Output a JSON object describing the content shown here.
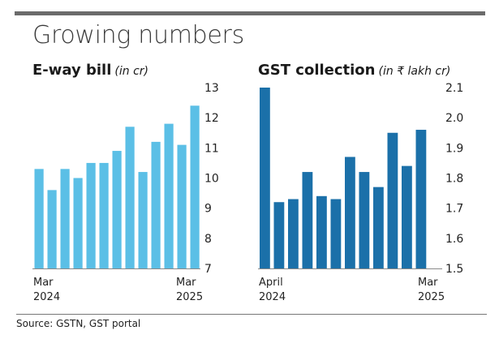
{
  "headline": "Growing numbers",
  "source": "Source: GSTN, GST portal",
  "colors": {
    "left_bars": "#5bbfe6",
    "right_bars": "#1b70a9",
    "axis_line": "#8a8a8a"
  },
  "chart_data": [
    {
      "type": "bar",
      "title": "E-way bill",
      "unit": "(in cr)",
      "categories": [
        "Mar 2024",
        "Apr 2024",
        "May 2024",
        "Jun 2024",
        "Jul 2024",
        "Aug 2024",
        "Sep 2024",
        "Oct 2024",
        "Nov 2024",
        "Dec 2024",
        "Jan 2025",
        "Feb 2025",
        "Mar 2025"
      ],
      "values": [
        10.3,
        9.6,
        10.3,
        10.0,
        10.5,
        10.5,
        10.9,
        11.7,
        10.2,
        11.2,
        11.8,
        11.1,
        12.4
      ],
      "ylim": [
        7,
        13
      ],
      "yticks": [
        "13",
        "12",
        "11",
        "10",
        "9",
        "8",
        "7"
      ],
      "xlabels": {
        "start_line1": "Mar",
        "start_line2": "2024",
        "end_line1": "Mar",
        "end_line2": "2025"
      },
      "legend": "none",
      "grid": false
    },
    {
      "type": "bar",
      "title": "GST collection",
      "unit": "(in ₹ lakh cr)",
      "categories": [
        "Apr 2024",
        "May 2024",
        "Jun 2024",
        "Jul 2024",
        "Aug 2024",
        "Sep 2024",
        "Oct 2024",
        "Nov 2024",
        "Dec 2024",
        "Jan 2025",
        "Feb 2025",
        "Mar 2025"
      ],
      "values": [
        2.1,
        1.72,
        1.73,
        1.82,
        1.74,
        1.73,
        1.87,
        1.82,
        1.77,
        1.95,
        1.84,
        1.96
      ],
      "ylim": [
        1.5,
        2.1
      ],
      "yticks": [
        "2.1",
        "2.0",
        "1.9",
        "1.8",
        "1.7",
        "1.6",
        "1.5"
      ],
      "xlabels": {
        "start_line1": "April",
        "start_line2": "2024",
        "end_line1": "Mar",
        "end_line2": "2025"
      },
      "legend": "none",
      "grid": false
    }
  ]
}
